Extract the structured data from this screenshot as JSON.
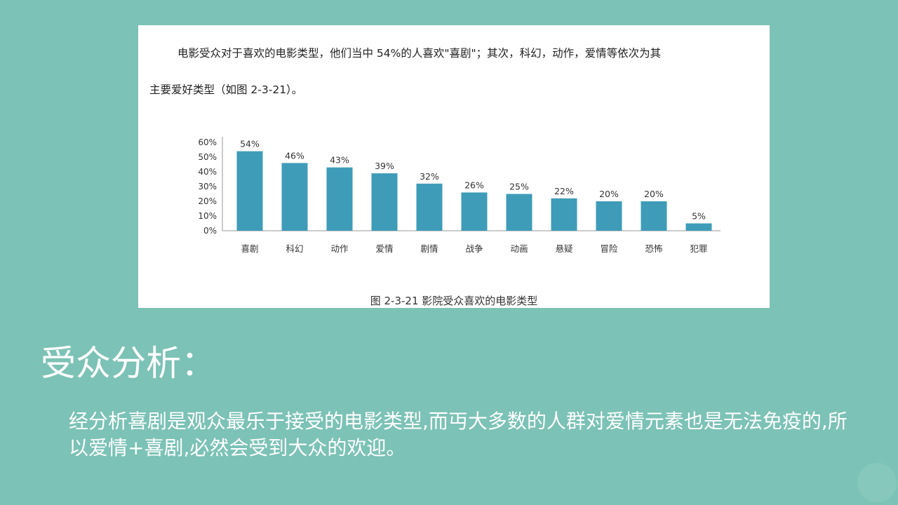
{
  "figure": {
    "intro_line_1": "电影受众对于喜欢的电影类型，他们当中 54%的人喜欢\"喜剧\"；其次，科幻，动作，爱情等依次为其",
    "intro_line_2": "主要爱好类型（如图 2-3-21）。",
    "caption": "图 2-3-21 影院受众喜欢的电影类型"
  },
  "chart_data": {
    "type": "bar",
    "categories": [
      "喜剧",
      "科幻",
      "动作",
      "爱情",
      "剧情",
      "战争",
      "动画",
      "悬疑",
      "冒险",
      "恐怖",
      "犯罪"
    ],
    "values": [
      54,
      46,
      43,
      39,
      32,
      26,
      25,
      22,
      20,
      20,
      5
    ],
    "data_labels": [
      "54%",
      "46%",
      "43%",
      "39%",
      "32%",
      "26%",
      "25%",
      "22%",
      "20%",
      "20%",
      "5%"
    ],
    "y_ticks": [
      "0%",
      "10%",
      "20%",
      "30%",
      "40%",
      "50%",
      "60%"
    ],
    "ylim": [
      0,
      60
    ],
    "bar_color": "#3e9cb8",
    "grid": false,
    "title": "",
    "xlabel": "",
    "ylabel": ""
  },
  "slide": {
    "section_title": "受众分析：",
    "summary": "经分析喜剧是观众最乐于接受的电影类型,而丏大多数的人群对爱情元素也是无法免疫的,所以爱情+喜剧,必然会受到大众的欢迎。"
  }
}
